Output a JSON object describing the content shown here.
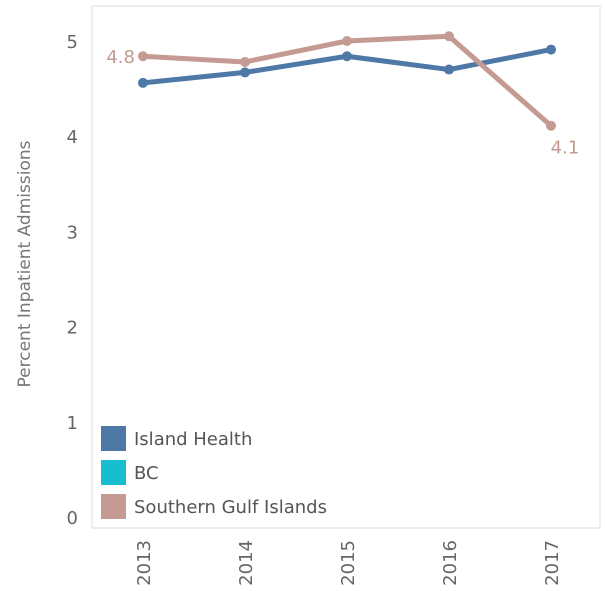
{
  "chart_data": {
    "type": "line",
    "title": "",
    "xlabel": "",
    "ylabel": "Percent Inpatient Admissions",
    "x": [
      "2013",
      "2014",
      "2015",
      "2016",
      "2017"
    ],
    "ylim": [
      0,
      5.3
    ],
    "yticks": [
      0,
      1,
      2,
      3,
      4,
      5
    ],
    "grid": false,
    "legend_position": "bottom-left",
    "series": [
      {
        "name": "Island Health",
        "color": "#4e79a7",
        "values": [
          4.56,
          4.67,
          4.84,
          4.7,
          4.91
        ]
      },
      {
        "name": "Southern Gulf Islands",
        "color": "#c49a92",
        "values": [
          4.84,
          4.78,
          5.0,
          5.05,
          4.11
        ]
      }
    ],
    "legend": [
      {
        "name": "Island Health",
        "color": "#4e79a7"
      },
      {
        "name": "BC",
        "color": "#17becf"
      },
      {
        "name": "Southern Gulf Islands",
        "color": "#c49a92"
      }
    ],
    "annotations": [
      {
        "series": "Southern Gulf Islands",
        "x": "2013",
        "text": "4.8"
      },
      {
        "series": "Southern Gulf Islands",
        "x": "2017",
        "text": "4.1"
      }
    ]
  }
}
